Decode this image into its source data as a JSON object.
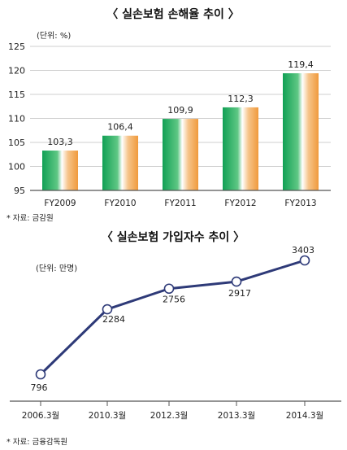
{
  "charts": [
    {
      "title": "〈 실손보험 손해율 추이 〉",
      "unit": "(단위: %)",
      "source": "* 자료: 금감원"
    },
    {
      "title": "〈 실손보험 가입자수 추이 〉",
      "unit": "(단위: 만명)",
      "source": "* 자료: 금융감독원"
    }
  ],
  "chart_data": [
    {
      "type": "bar",
      "title": "〈 실손보험 손해율 추이 〉",
      "unit": "(단위: %)",
      "categories": [
        "FY2009",
        "FY2010",
        "FY2011",
        "FY2012",
        "FY2013"
      ],
      "values": [
        103.3,
        106.4,
        109.9,
        112.3,
        119.4
      ],
      "value_labels": [
        "103,3",
        "106,4",
        "109,9",
        "112,3",
        "119,4"
      ],
      "ylim": [
        95,
        125
      ],
      "yticks": [
        95,
        100,
        105,
        110,
        115,
        120,
        125
      ],
      "grid": true,
      "colors": {
        "green": "#1aa75a",
        "orange": "#f2a24a",
        "axis": "#555555"
      },
      "source": "* 자료: 금감원"
    },
    {
      "type": "line",
      "title": "〈 실손보험 가입자수 추이 〉",
      "unit": "(단위: 만명)",
      "categories": [
        "2006.3월",
        "2010.3월",
        "2012.3월",
        "2013.3월",
        "2014.3월"
      ],
      "values": [
        796,
        2284,
        2756,
        2917,
        3403
      ],
      "value_labels": [
        "796",
        "2284",
        "2756",
        "2917",
        "3403"
      ],
      "grid": false,
      "colors": {
        "line": "#2e3a78",
        "marker_fill": "#ffffff"
      },
      "source": "* 자료: 금융감독원"
    }
  ]
}
